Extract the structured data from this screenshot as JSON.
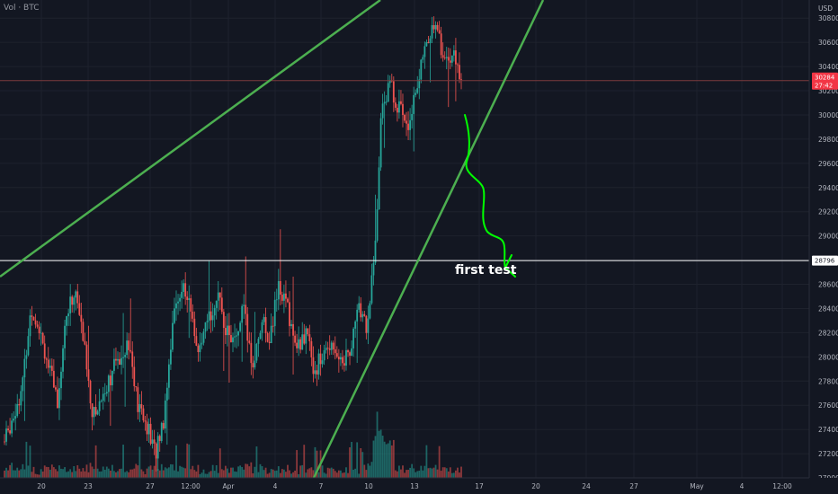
{
  "legend": "Vol · BTC",
  "colors": {
    "background": "#131722",
    "grid": "#1e222d",
    "up": "#26a69a",
    "down": "#ef5350",
    "trendline": "#4caf50",
    "drawing": "#00ff00",
    "hline": "#ffffff",
    "current_line": "#7c3a3d",
    "current_tag": "#f23645"
  },
  "chart_data": {
    "type": "candlestick",
    "ylabel": "USD",
    "ylim": [
      27000,
      30950
    ],
    "y_ticks": [
      27000,
      27200,
      27400,
      27600,
      27800,
      28000,
      28200,
      28400,
      28600,
      28800,
      29000,
      29200,
      29400,
      29600,
      29800,
      30000,
      30200,
      30400,
      30600,
      30800
    ],
    "x_ticks": [
      "20",
      "23",
      "27",
      "12:00",
      "Apr",
      "4",
      "7",
      "10",
      "13",
      "17",
      "20",
      "24",
      "27",
      "May",
      "4",
      "12:00"
    ],
    "current_price": {
      "value": "30284",
      "countdown": "27:42",
      "numeric": 30284
    },
    "horizontal_line": {
      "value": "28796",
      "numeric": 28796
    },
    "annotation": "first test",
    "price_path": [
      {
        "day": 0,
        "price": 27300
      },
      {
        "day": 1,
        "price": 27750
      },
      {
        "day": 1.5,
        "price": 28400
      },
      {
        "day": 2,
        "price": 28250
      },
      {
        "day": 2.5,
        "price": 27900
      },
      {
        "day": 3,
        "price": 27650
      },
      {
        "day": 3.5,
        "price": 28350
      },
      {
        "day": 4,
        "price": 28550
      },
      {
        "day": 4.5,
        "price": 28100
      },
      {
        "day": 5,
        "price": 27500
      },
      {
        "day": 6,
        "price": 27850
      },
      {
        "day": 7,
        "price": 28150
      },
      {
        "day": 7.5,
        "price": 27600
      },
      {
        "day": 8,
        "price": 27450
      },
      {
        "day": 8.5,
        "price": 27200
      },
      {
        "day": 9,
        "price": 27500
      },
      {
        "day": 9.5,
        "price": 28300
      },
      {
        "day": 10,
        "price": 28600
      },
      {
        "day": 10.5,
        "price": 28400
      },
      {
        "day": 11,
        "price": 28000
      },
      {
        "day": 11.5,
        "price": 28300
      },
      {
        "day": 12,
        "price": 28500
      },
      {
        "day": 12.5,
        "price": 28250
      },
      {
        "day": 13,
        "price": 28100
      },
      {
        "day": 13.5,
        "price": 28400
      },
      {
        "day": 14,
        "price": 27900
      },
      {
        "day": 14.5,
        "price": 28300
      },
      {
        "day": 15,
        "price": 28150
      },
      {
        "day": 15.5,
        "price": 28600
      },
      {
        "day": 16,
        "price": 28400
      },
      {
        "day": 16.5,
        "price": 28050
      },
      {
        "day": 17,
        "price": 28200
      },
      {
        "day": 17.5,
        "price": 27900
      },
      {
        "day": 18,
        "price": 28000
      },
      {
        "day": 18.5,
        "price": 28150
      },
      {
        "day": 19,
        "price": 27950
      },
      {
        "day": 19.5,
        "price": 28050
      },
      {
        "day": 20,
        "price": 28400
      },
      {
        "day": 20.5,
        "price": 28250
      },
      {
        "day": 21,
        "price": 29000
      },
      {
        "day": 21.3,
        "price": 30100
      },
      {
        "day": 21.8,
        "price": 30250
      },
      {
        "day": 22.3,
        "price": 30050
      },
      {
        "day": 22.8,
        "price": 29950
      },
      {
        "day": 23.3,
        "price": 30250
      },
      {
        "day": 23.8,
        "price": 30550
      },
      {
        "day": 24.3,
        "price": 30800
      },
      {
        "day": 24.8,
        "price": 30450
      },
      {
        "day": 25.3,
        "price": 30500
      },
      {
        "day": 25.8,
        "price": 30284
      }
    ]
  }
}
